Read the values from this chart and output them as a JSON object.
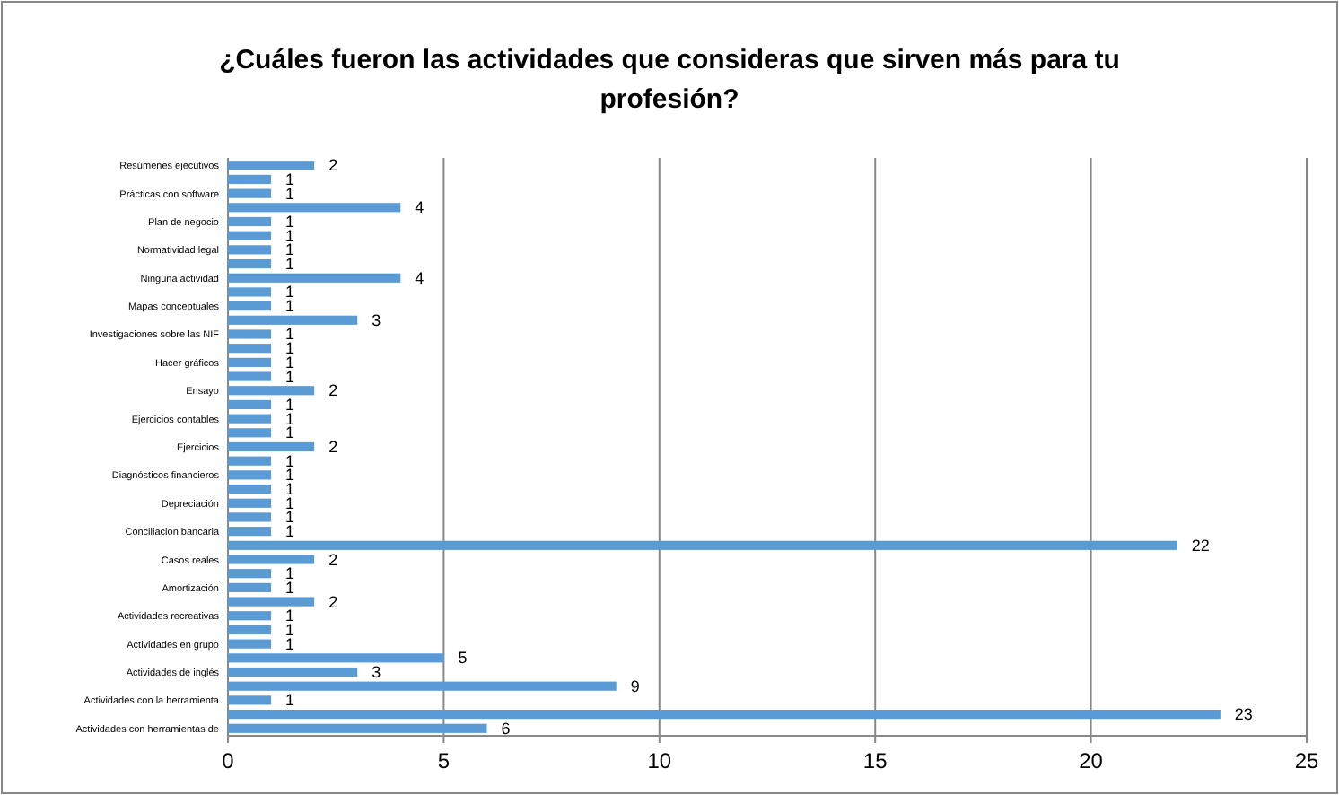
{
  "chart_data": {
    "type": "bar",
    "orientation": "horizontal",
    "title": "¿Cuáles fueron las actividades que consideras que sirven más para tu profesión?",
    "categories": [
      "Resúmenes ejecutivos",
      null,
      "Prácticas con software",
      null,
      "Plan de negocio",
      null,
      "Normatividad legal",
      null,
      "Ninguna actividad",
      null,
      "Mapas conceptuales",
      null,
      "Investigaciones sobre las NIF",
      null,
      "Hacer gráficos",
      null,
      "Ensayo",
      null,
      "Ejercicios contables",
      null,
      "Ejercicios",
      null,
      "Diagnósticos financieros",
      null,
      "Depreciación",
      null,
      "Conciliacion bancaria",
      null,
      "Casos reales",
      null,
      "Amortización",
      null,
      "Actividades recreativas",
      null,
      "Actividades en grupo",
      null,
      "Actividades de inglés",
      null,
      "Actividades con la herramienta",
      null,
      "Actividades con herramientas de"
    ],
    "values": [
      2,
      1,
      1,
      4,
      1,
      1,
      1,
      1,
      4,
      1,
      1,
      3,
      1,
      1,
      1,
      1,
      2,
      1,
      1,
      1,
      2,
      1,
      1,
      1,
      1,
      1,
      1,
      22,
      2,
      1,
      1,
      2,
      1,
      1,
      1,
      5,
      3,
      9,
      1,
      23,
      6
    ],
    "color": "#5b9bd5",
    "xlim": [
      0,
      25
    ],
    "xticks": [
      0,
      5,
      10,
      15,
      20,
      25
    ],
    "grid": "x",
    "data_labels": true
  }
}
